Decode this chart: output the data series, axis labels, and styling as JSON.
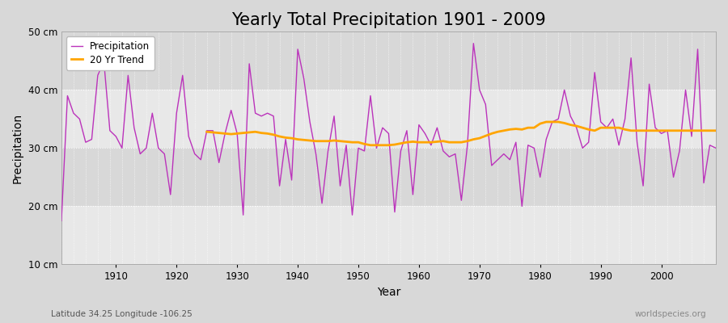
{
  "title": "Yearly Total Precipitation 1901 - 2009",
  "xlabel": "Year",
  "ylabel": "Precipitation",
  "lat_lon_label": "Latitude 34.25 Longitude -106.25",
  "watermark": "worldspecies.org",
  "years": [
    1901,
    1902,
    1903,
    1904,
    1905,
    1906,
    1907,
    1908,
    1909,
    1910,
    1911,
    1912,
    1913,
    1914,
    1915,
    1916,
    1917,
    1918,
    1919,
    1920,
    1921,
    1922,
    1923,
    1924,
    1925,
    1926,
    1927,
    1928,
    1929,
    1930,
    1931,
    1932,
    1933,
    1934,
    1935,
    1936,
    1937,
    1938,
    1939,
    1940,
    1941,
    1942,
    1943,
    1944,
    1945,
    1946,
    1947,
    1948,
    1949,
    1950,
    1951,
    1952,
    1953,
    1954,
    1955,
    1956,
    1957,
    1958,
    1959,
    1960,
    1961,
    1962,
    1963,
    1964,
    1965,
    1966,
    1967,
    1968,
    1969,
    1970,
    1971,
    1972,
    1973,
    1974,
    1975,
    1976,
    1977,
    1978,
    1979,
    1980,
    1981,
    1982,
    1983,
    1984,
    1985,
    1986,
    1987,
    1988,
    1989,
    1990,
    1991,
    1992,
    1993,
    1994,
    1995,
    1996,
    1997,
    1998,
    1999,
    2000,
    2001,
    2002,
    2003,
    2004,
    2005,
    2006,
    2007,
    2008,
    2009
  ],
  "precip": [
    17.5,
    39.0,
    36.0,
    35.0,
    31.0,
    31.5,
    42.5,
    45.0,
    33.0,
    32.0,
    30.0,
    42.5,
    33.5,
    29.0,
    30.0,
    36.0,
    30.0,
    29.0,
    22.0,
    36.0,
    42.5,
    32.0,
    29.0,
    28.0,
    33.0,
    33.0,
    27.5,
    32.5,
    36.5,
    32.5,
    18.5,
    44.5,
    36.0,
    35.5,
    36.0,
    35.5,
    23.5,
    31.5,
    24.5,
    47.0,
    42.0,
    34.5,
    29.0,
    20.5,
    29.5,
    35.5,
    23.5,
    30.5,
    18.5,
    30.0,
    29.5,
    39.0,
    30.0,
    33.5,
    32.5,
    19.0,
    29.5,
    33.0,
    22.0,
    34.0,
    32.5,
    30.5,
    33.5,
    29.5,
    28.5,
    29.0,
    21.0,
    30.5,
    48.0,
    40.0,
    37.5,
    27.0,
    28.0,
    29.0,
    28.0,
    31.0,
    20.0,
    30.5,
    30.0,
    25.0,
    31.5,
    34.5,
    35.0,
    40.0,
    35.5,
    33.5,
    30.0,
    31.0,
    43.0,
    34.5,
    33.5,
    35.0,
    30.5,
    35.0,
    45.5,
    31.0,
    23.5,
    41.0,
    33.5,
    32.5,
    33.0,
    25.0,
    29.5,
    40.0,
    32.0,
    47.0,
    24.0,
    30.5,
    30.0
  ],
  "trend_start_year": 1925,
  "trend_years": [
    1925,
    1926,
    1927,
    1928,
    1929,
    1930,
    1931,
    1932,
    1933,
    1934,
    1935,
    1936,
    1937,
    1938,
    1939,
    1940,
    1941,
    1942,
    1943,
    1944,
    1945,
    1946,
    1947,
    1948,
    1949,
    1950,
    1951,
    1952,
    1953,
    1954,
    1955,
    1956,
    1957,
    1958,
    1959,
    1960,
    1961,
    1962,
    1963,
    1964,
    1965,
    1966,
    1967,
    1968,
    1969,
    1970,
    1971,
    1972,
    1973,
    1974,
    1975,
    1976,
    1977,
    1978,
    1979,
    1980,
    1981,
    1982,
    1983,
    1984,
    1985,
    1986,
    1987,
    1988,
    1989,
    1990,
    1991,
    1992,
    1993,
    1994,
    1995,
    1996,
    1997,
    1998,
    1999,
    2000,
    2001,
    2002,
    2003,
    2004,
    2005,
    2006,
    2007,
    2008,
    2009
  ],
  "trend": [
    32.8,
    32.7,
    32.6,
    32.5,
    32.4,
    32.5,
    32.6,
    32.7,
    32.8,
    32.6,
    32.5,
    32.3,
    32.0,
    31.8,
    31.7,
    31.5,
    31.4,
    31.3,
    31.2,
    31.2,
    31.2,
    31.3,
    31.2,
    31.1,
    31.0,
    31.0,
    30.7,
    30.5,
    30.5,
    30.5,
    30.5,
    30.6,
    30.8,
    31.0,
    31.1,
    31.0,
    31.0,
    31.0,
    31.1,
    31.2,
    31.0,
    31.0,
    31.0,
    31.2,
    31.5,
    31.7,
    32.1,
    32.5,
    32.8,
    33.0,
    33.2,
    33.3,
    33.2,
    33.5,
    33.5,
    34.2,
    34.5,
    34.5,
    34.5,
    34.3,
    34.0,
    33.8,
    33.5,
    33.2,
    33.0,
    33.5,
    33.5,
    33.5,
    33.5,
    33.2,
    33.0,
    33.0,
    33.0,
    33.0,
    33.0,
    33.0,
    33.0,
    33.0,
    33.0,
    33.0,
    33.0,
    33.0,
    33.0,
    33.0,
    33.0
  ],
  "precip_color": "#bb33bb",
  "trend_color": "#ffa500",
  "fig_bg_color": "#d8d8d8",
  "plot_bg_color_light": "#e8e8e8",
  "plot_bg_color_dark": "#d8d8d8",
  "grid_color": "#ffffff",
  "ylim": [
    10,
    50
  ],
  "xlim": [
    1901,
    2009
  ],
  "yticks": [
    10,
    20,
    30,
    40,
    50
  ],
  "ytick_labels": [
    "10 cm",
    "20 cm",
    "30 cm",
    "40 cm",
    "50 cm"
  ],
  "title_fontsize": 15,
  "axis_label_fontsize": 10,
  "tick_fontsize": 8.5,
  "legend_fontsize": 8.5,
  "annotation_fontsize": 7.5
}
